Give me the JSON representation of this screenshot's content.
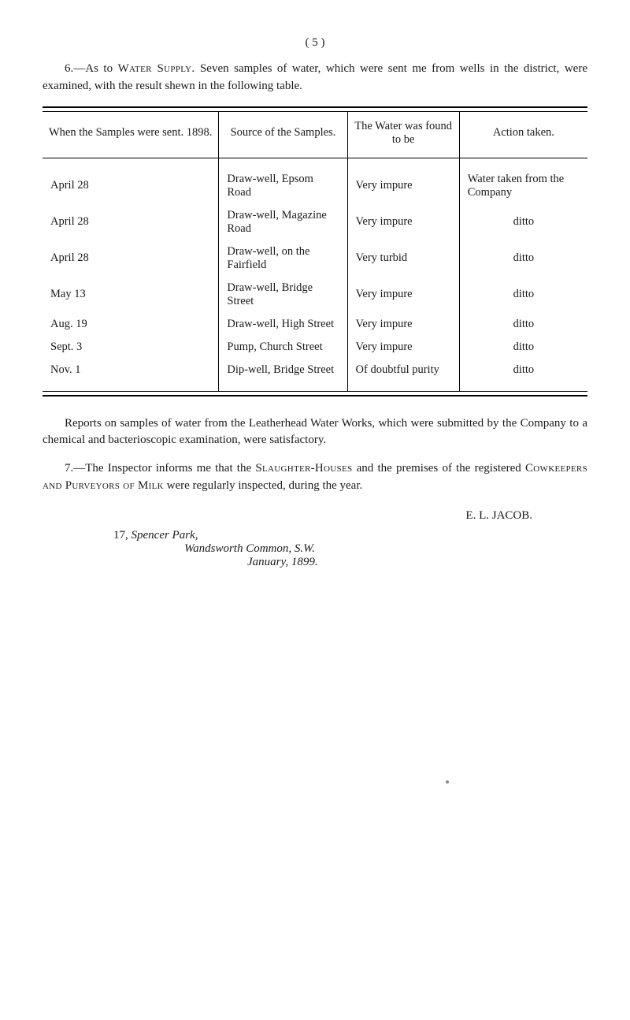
{
  "page_number": "( 5 )",
  "intro": {
    "num": "6.",
    "label_pre": "—As to ",
    "label_sc": "Water Supply.",
    "text": "   Seven samples of water, which were sent me from wells in the district, were examined, with the result shewn in the following table."
  },
  "table": {
    "columns": [
      "When the Samples were sent. 1898.",
      "Source of the Samples.",
      "The Water was found to be",
      "Action taken."
    ],
    "rows": [
      [
        "April 28",
        "Draw-well, Epsom Road",
        "Very impure",
        "Water taken from the Company"
      ],
      [
        "April 28",
        "Draw-well, Magazine Road",
        "Very impure",
        "ditto"
      ],
      [
        "April 28",
        "Draw-well, on the Fairfield",
        "Very turbid",
        "ditto"
      ],
      [
        "May  13",
        "Draw-well, Bridge Street",
        "Very impure",
        "ditto"
      ],
      [
        "Aug.  19",
        "Draw-well, High Street",
        "Very impure",
        "ditto"
      ],
      [
        "Sept.  3",
        "Pump, Church Street",
        "Very impure",
        "ditto"
      ],
      [
        "Nov.   1",
        "Dip-well, Bridge Street",
        "Of doubtful purity",
        "ditto"
      ]
    ],
    "col_widths_pct": [
      14,
      30,
      26,
      30
    ],
    "border_color": "#000000",
    "font_size_pt": 11
  },
  "para_reports": "Reports on samples of water from the Leatherhead Water Works, which were submitted by the Company to a chemical and bacterioscopic examination, were satisfactory.",
  "para7": {
    "num": "7.",
    "pre": "—The Inspector informs me that the ",
    "sc1": "Slaughter-Houses",
    "mid": " and the premises of the registered ",
    "sc2": "Cowkeepers and Purveyors of Milk",
    "post": " were regularly inspected, during the year."
  },
  "signature": {
    "name": "E. L. JACOB.",
    "addr1_pre": "17,   ",
    "addr1_ital": "Spencer   Park,",
    "addr2": "Wandsworth   Common,   S.W.",
    "addr3": "January,   1899."
  },
  "colors": {
    "text": "#1a1a1a",
    "background": "#ffffff"
  }
}
